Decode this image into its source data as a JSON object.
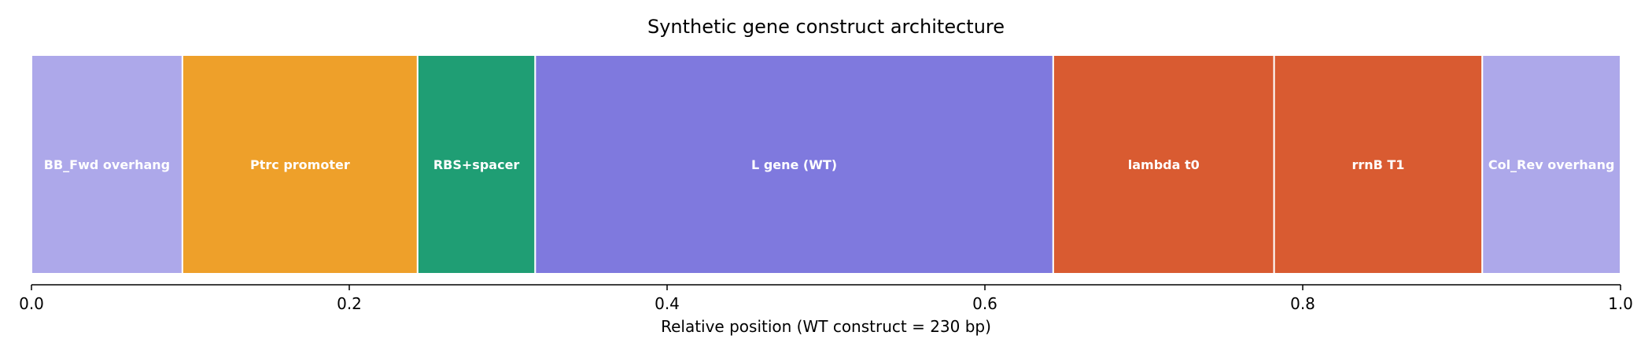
{
  "chart_data": {
    "type": "bar",
    "orientation": "horizontal-stacked",
    "title": "Synthetic gene construct architecture",
    "xlabel": "Relative position (WT construct = 230 bp)",
    "ylabel": "",
    "xlim": [
      0.0,
      1.0
    ],
    "xticks": [
      0.0,
      0.2,
      0.4,
      0.6,
      0.8,
      1.0
    ],
    "xtick_labels": [
      "0.0",
      "0.2",
      "0.4",
      "0.6",
      "0.8",
      "1.0"
    ],
    "grid": false,
    "segments": [
      {
        "label": "BB_Fwd overhang",
        "start": 0.0,
        "end": 0.095,
        "color": "#ADA8EA"
      },
      {
        "label": "Ptrc promoter",
        "start": 0.095,
        "end": 0.243,
        "color": "#EEA02A"
      },
      {
        "label": "RBS+spacer",
        "start": 0.243,
        "end": 0.317,
        "color": "#1F9E74"
      },
      {
        "label": "L gene (WT)",
        "start": 0.317,
        "end": 0.643,
        "color": "#7F79DE"
      },
      {
        "label": "lambda t0",
        "start": 0.643,
        "end": 0.782,
        "color": "#D95B31"
      },
      {
        "label": "rrnB T1",
        "start": 0.782,
        "end": 0.913,
        "color": "#D95B31"
      },
      {
        "label": "Col_Rev overhang",
        "start": 0.913,
        "end": 1.0,
        "color": "#ADA8EA"
      }
    ]
  }
}
